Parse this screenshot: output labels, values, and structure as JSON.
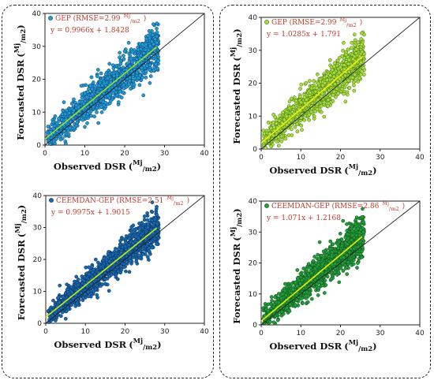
{
  "chart_data": [
    {
      "type": "scatter",
      "panel": "top-left",
      "xlabel": "Observed DSR",
      "ylabel": "Forecasted DSR",
      "unit_num": "Mj",
      "unit_den": "m2",
      "xlim": [
        0,
        40
      ],
      "ylim": [
        0,
        40
      ],
      "xticks": [
        0,
        10,
        20,
        30,
        40
      ],
      "yticks": [
        0,
        10,
        20,
        30,
        40
      ],
      "legend": "GEP (RMSE=2.99",
      "legend_unit_num": "Mj",
      "legend_unit_den": "m2",
      "legend_close": ")",
      "equation": "y = 0.9966x + 1.8428",
      "fit": {
        "slope": 0.9966,
        "intercept": 1.8428,
        "x_range": [
          0,
          28
        ]
      },
      "one_to_one": true,
      "points": {
        "count": 1200,
        "x_range": [
          0.5,
          28.5
        ],
        "spread": 3.0
      },
      "colors": {
        "marker_fill": "#1f9bd6",
        "marker_edge": "#0b3a66",
        "fit_line": "#a4e31a",
        "annotation": "#c0392b"
      }
    },
    {
      "type": "scatter",
      "panel": "top-right",
      "xlabel": "Observed DSR",
      "ylabel": "Forecasted DSR",
      "unit_num": "Mj",
      "unit_den": "m2",
      "xlim": [
        0,
        40
      ],
      "ylim": [
        0,
        40
      ],
      "xticks": [
        0,
        10,
        20,
        30,
        40
      ],
      "yticks": [
        0,
        10,
        20,
        30,
        40
      ],
      "legend": "GEP (RMSE=2.99",
      "legend_unit_num": "Mj",
      "legend_unit_den": "m2",
      "legend_close": ")",
      "equation": "y = 1.0285x + 1.791",
      "fit": {
        "slope": 1.0285,
        "intercept": 1.791,
        "x_range": [
          0,
          25.5
        ]
      },
      "one_to_one": true,
      "points": {
        "count": 1200,
        "x_range": [
          0.5,
          26
        ],
        "spread": 3.0
      },
      "colors": {
        "marker_fill": "#a8dc3a",
        "marker_edge": "#3f6e10",
        "fit_line": "#f4f000",
        "annotation": "#c0392b"
      }
    },
    {
      "type": "scatter",
      "panel": "bottom-left",
      "xlabel": "Observed DSR",
      "ylabel": "Forecasted DSR",
      "unit_num": "Mj",
      "unit_den": "m2",
      "xlim": [
        0,
        40
      ],
      "ylim": [
        0,
        40
      ],
      "xticks": [
        0,
        10,
        20,
        30,
        40
      ],
      "yticks": [
        0,
        10,
        20,
        30,
        40
      ],
      "legend": "CEEMDAN-GEP (RMSE=2.51",
      "legend_unit_num": "Mj",
      "legend_unit_den": "m2",
      "legend_close": ")",
      "equation": "y = 0.9975x + 1.9015",
      "fit": {
        "slope": 0.9975,
        "intercept": 1.9015,
        "x_range": [
          0,
          28
        ]
      },
      "one_to_one": true,
      "points": {
        "count": 1400,
        "x_range": [
          0.5,
          28.5
        ],
        "spread": 2.5
      },
      "colors": {
        "marker_fill": "#1769b0",
        "marker_edge": "#0a2a52",
        "fit_line": "#c8f000",
        "annotation": "#c0392b"
      }
    },
    {
      "type": "scatter",
      "panel": "bottom-right",
      "xlabel": "Observed DSR",
      "ylabel": "Forecasted DSR",
      "unit_num": "Mj",
      "unit_den": "m2",
      "xlim": [
        0,
        40
      ],
      "ylim": [
        0,
        40
      ],
      "xticks": [
        0,
        10,
        20,
        30,
        40
      ],
      "yticks": [
        0,
        10,
        20,
        30,
        40
      ],
      "legend": "CEEMDAN-GEP (RMSE=2.86",
      "legend_unit_num": "Mj",
      "legend_unit_den": "m2",
      "legend_close": ")",
      "equation": "y = 1.071x + 1.2168",
      "fit": {
        "slope": 1.071,
        "intercept": 1.2168,
        "x_range": [
          0,
          25.5
        ]
      },
      "one_to_one": true,
      "points": {
        "count": 1400,
        "x_range": [
          0.5,
          26
        ],
        "spread": 2.9
      },
      "colors": {
        "marker_fill": "#239c3b",
        "marker_edge": "#0b4a17",
        "fit_line": "#eef000",
        "annotation": "#c0392b"
      }
    }
  ]
}
